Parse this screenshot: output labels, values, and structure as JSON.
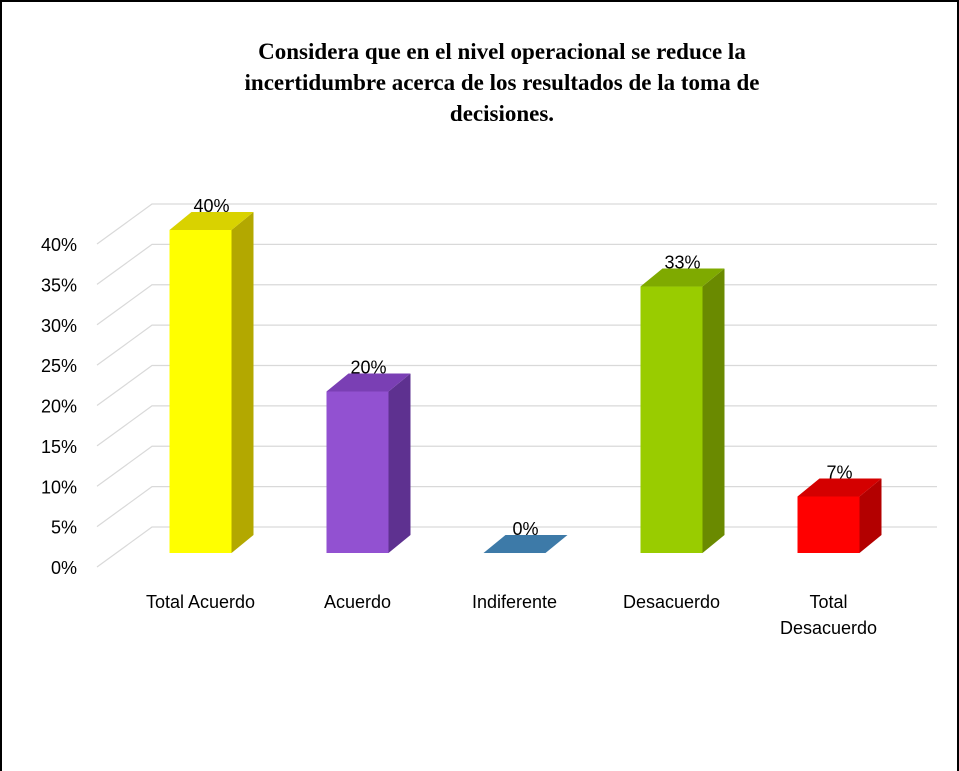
{
  "chart_data": {
    "type": "bar",
    "title_lines": [
      "Considera que en el nivel operacional se reduce la",
      "incertidumbre acerca de los resultados de la toma de",
      "decisiones."
    ],
    "categories": [
      [
        "Total Acuerdo"
      ],
      [
        "Acuerdo"
      ],
      [
        "Indiferente"
      ],
      [
        "Desacuerdo"
      ],
      [
        "Total",
        "Desacuerdo"
      ]
    ],
    "values": [
      40,
      20,
      0,
      33,
      7
    ],
    "data_labels": [
      "40%",
      "20%",
      "0%",
      "33%",
      "7%"
    ],
    "y_ticks": [
      "0%",
      "5%",
      "10%",
      "15%",
      "20%",
      "25%",
      "30%",
      "35%",
      "40%"
    ],
    "ylim": [
      0,
      40
    ],
    "grid": true,
    "style": "3d-column",
    "colors": [
      {
        "front": "#ffff00",
        "side": "#b3a800",
        "top": "#d9d200"
      },
      {
        "front": "#9251d1",
        "side": "#5e3190",
        "top": "#7a3fb4"
      },
      {
        "front": "#2e8bc0",
        "side": "#1f5f85",
        "top": "#3d7aa8"
      },
      {
        "front": "#99cc00",
        "side": "#6a8a00",
        "top": "#7faa00"
      },
      {
        "front": "#ff0000",
        "side": "#b30000",
        "top": "#d40000"
      }
    ]
  }
}
